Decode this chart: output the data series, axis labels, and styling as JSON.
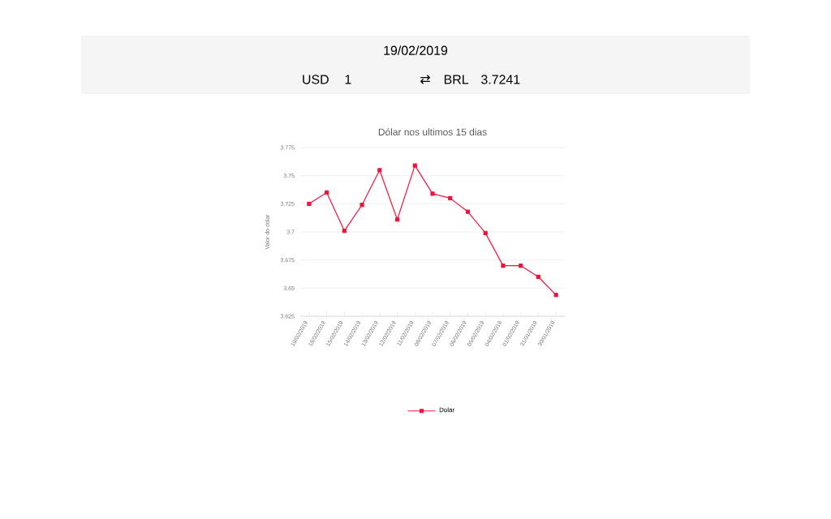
{
  "chart_data": {
    "type": "line",
    "title": "Dólar nos ultimos 15 dias",
    "ylabel": "Valor do dólar",
    "annotations": [
      "19/02/2019",
      "USD",
      "1",
      "⇄",
      "BRL",
      "3.7241"
    ],
    "categories": [
      "19/02/2019",
      "18/02/2019",
      "15/02/2019",
      "14/02/2019",
      "13/02/2019",
      "12/02/2019",
      "11/02/2019",
      "08/02/2019",
      "07/02/2019",
      "06/02/2019",
      "05/02/2019",
      "04/02/2019",
      "01/02/2019",
      "31/01/2019",
      "30/01/2019"
    ],
    "series": [
      {
        "name": "Dolar",
        "color": "#f0143c",
        "values": [
          3.725,
          3.735,
          3.701,
          3.724,
          3.755,
          3.711,
          3.759,
          3.734,
          3.73,
          3.718,
          3.699,
          3.67,
          3.67,
          3.66,
          3.644
        ]
      }
    ],
    "ylim": [
      3.625,
      3.775
    ],
    "yticks": [
      3.625,
      3.65,
      3.675,
      3.7,
      3.725,
      3.75,
      3.775
    ],
    "grid": "y",
    "legend": "bottom",
    "marker": "square",
    "line_style": "solid"
  }
}
